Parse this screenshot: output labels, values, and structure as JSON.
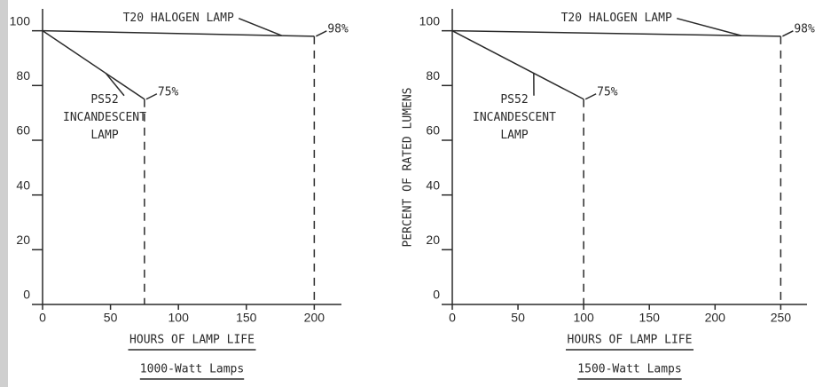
{
  "chart_data": [
    {
      "type": "line",
      "subtitle": "1000-Watt Lamps",
      "x_label": "HOURS OF LAMP LIFE",
      "xlim": [
        0,
        220
      ],
      "ylim": [
        0,
        108
      ],
      "xticks": [
        0,
        50,
        100,
        150,
        200
      ],
      "yticks": [
        0,
        20,
        40,
        60,
        80,
        100
      ],
      "series": [
        {
          "name": "T20 HALOGEN LAMP",
          "color": "#2a2a2a",
          "x": [
            0,
            200
          ],
          "values": [
            100,
            98
          ],
          "value_labels": [
            null,
            "98%"
          ]
        },
        {
          "name": "PS52 INCANDESCENT LAMP",
          "color": "#2a2a2a",
          "x": [
            0,
            75
          ],
          "values": [
            100,
            75
          ],
          "value_labels": [
            null,
            "75%"
          ]
        }
      ]
    },
    {
      "type": "line",
      "subtitle": "1500-Watt Lamps",
      "x_label": "HOURS OF LAMP LIFE",
      "y_label": "PERCENT OF RATED LUMENS",
      "xlim": [
        0,
        270
      ],
      "ylim": [
        0,
        108
      ],
      "xticks": [
        0,
        50,
        100,
        150,
        200,
        250
      ],
      "yticks": [
        0,
        20,
        40,
        60,
        80,
        100
      ],
      "series": [
        {
          "name": "T20 HALOGEN LAMP",
          "color": "#2a2a2a",
          "x": [
            0,
            250
          ],
          "values": [
            100,
            98
          ],
          "value_labels": [
            null,
            "98%"
          ]
        },
        {
          "name": "PS52 INCANDESCENT LAMP",
          "color": "#2a2a2a",
          "x": [
            0,
            100
          ],
          "values": [
            100,
            75
          ],
          "value_labels": [
            null,
            "75%"
          ]
        }
      ]
    }
  ]
}
